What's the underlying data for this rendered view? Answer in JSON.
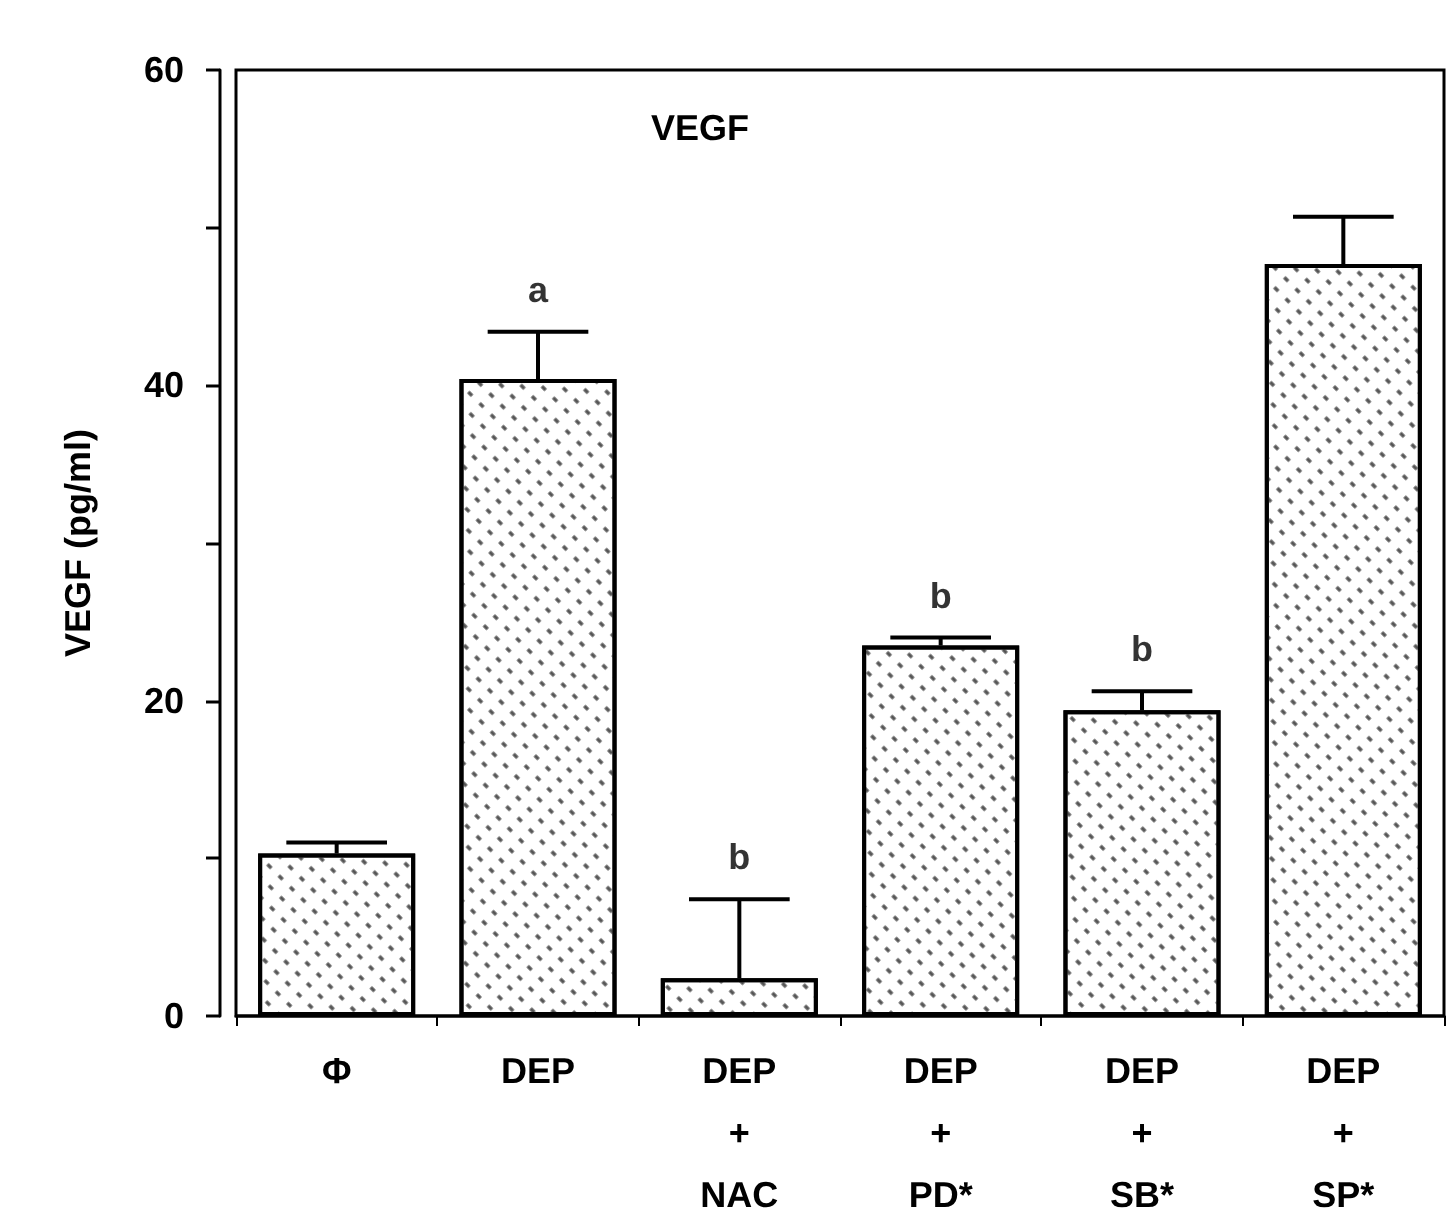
{
  "chart_data": {
    "type": "bar",
    "title": "VEGF",
    "ylabel": "VEGF (pg/ml)",
    "categories": [
      "Φ",
      "DEP",
      "DEP\n+\nNAC",
      "DEP\n+\nPD*",
      "DEP\n+\nSB*",
      "DEP\n+\nSP*"
    ],
    "values": [
      10.3,
      40.4,
      2.4,
      23.5,
      19.4,
      47.7
    ],
    "errors": [
      [
        10.3,
        11.0
      ],
      [
        40.4,
        43.4
      ],
      [
        2.4,
        7.4
      ],
      [
        23.5,
        24.0
      ],
      [
        19.4,
        20.6
      ],
      [
        47.7,
        50.7
      ]
    ],
    "color": "#ffffff",
    "ylim": [
      0,
      60
    ],
    "yticks": [
      0,
      {
        "value": 10,
        "label": null
      },
      20,
      {
        "value": 30,
        "label": null
      },
      40,
      {
        "value": 50,
        "label": null
      },
      60
    ],
    "annotations": [
      {
        "text": "a",
        "x": "DEP",
        "y": 43.4
      },
      {
        "text": "b",
        "x": "DEP\n+\nNAC",
        "y": 7.4
      },
      {
        "text": "b",
        "x": "DEP\n+\nPD*",
        "y": 24.0
      },
      {
        "text": "b",
        "x": "DEP\n+\nSB*",
        "y": 20.6
      }
    ],
    "grid": false
  }
}
